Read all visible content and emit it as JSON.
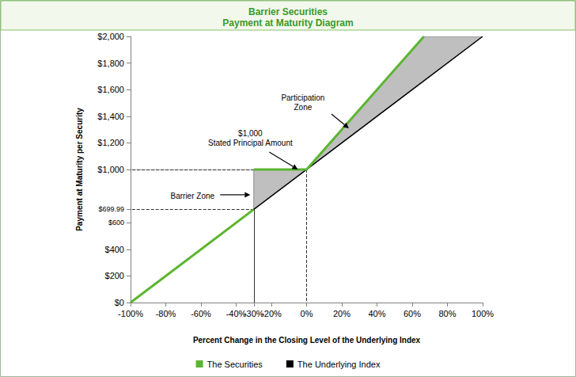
{
  "chart_data": {
    "type": "line",
    "title": "Barrier Securities",
    "subtitle": "Payment at Maturity Diagram",
    "x_label": "Percent Change in the Closing Level of the Underlying Index",
    "y_label": "Payment at Maturity per Security",
    "series": [
      {
        "name": "The Securities",
        "color": "#5cb531",
        "x": [
          -100,
          -30,
          -30,
          -30,
          0,
          66.67
        ],
        "values": [
          0,
          699.99,
          null,
          1000,
          1000,
          2000
        ]
      },
      {
        "name": "The Underlying Index",
        "color": "#000000",
        "x": [
          -100,
          100
        ],
        "values": [
          0,
          2000
        ]
      }
    ],
    "xlim": [
      -100,
      100
    ],
    "xticks": [
      {
        "value": -100,
        "label": "-100%"
      },
      {
        "value": -80,
        "label": "-80%"
      },
      {
        "value": -60,
        "label": "-60%"
      },
      {
        "value": -40,
        "label": "-40%"
      },
      {
        "value": -30,
        "label": "-30%"
      },
      {
        "value": -20,
        "label": "-20%"
      },
      {
        "value": 0,
        "label": "0%"
      },
      {
        "value": 20,
        "label": "20%"
      },
      {
        "value": 40,
        "label": "40%"
      },
      {
        "value": 60,
        "label": "60%"
      },
      {
        "value": 80,
        "label": "80%"
      },
      {
        "value": 100,
        "label": "100%"
      }
    ],
    "ylim": [
      0,
      2000
    ],
    "yticks": [
      {
        "value": 0,
        "label": "$0"
      },
      {
        "value": 200,
        "label": "$200"
      },
      {
        "value": 400,
        "label": "$400"
      },
      {
        "value": 600,
        "label": "$600"
      },
      {
        "value": 699.99,
        "label": "$699.99"
      },
      {
        "value": 1000,
        "label": "$1,000"
      },
      {
        "value": 1200,
        "label": "$1,200"
      },
      {
        "value": 1400,
        "label": "$1,400"
      },
      {
        "value": 1600,
        "label": "$1,600"
      },
      {
        "value": 1800,
        "label": "$1,800"
      },
      {
        "value": 2000,
        "label": "$2,000"
      }
    ],
    "annotations": [
      {
        "text": [
          "$1,000",
          "Stated Principal Amount"
        ],
        "x": -5,
        "y": 1000
      },
      {
        "text": [
          "Barrier Zone"
        ],
        "x": -32,
        "y": 810
      },
      {
        "text": [
          "Participation",
          "Zone"
        ],
        "x": 24,
        "y": 1310
      }
    ],
    "grid": false,
    "legend": "bottom"
  }
}
